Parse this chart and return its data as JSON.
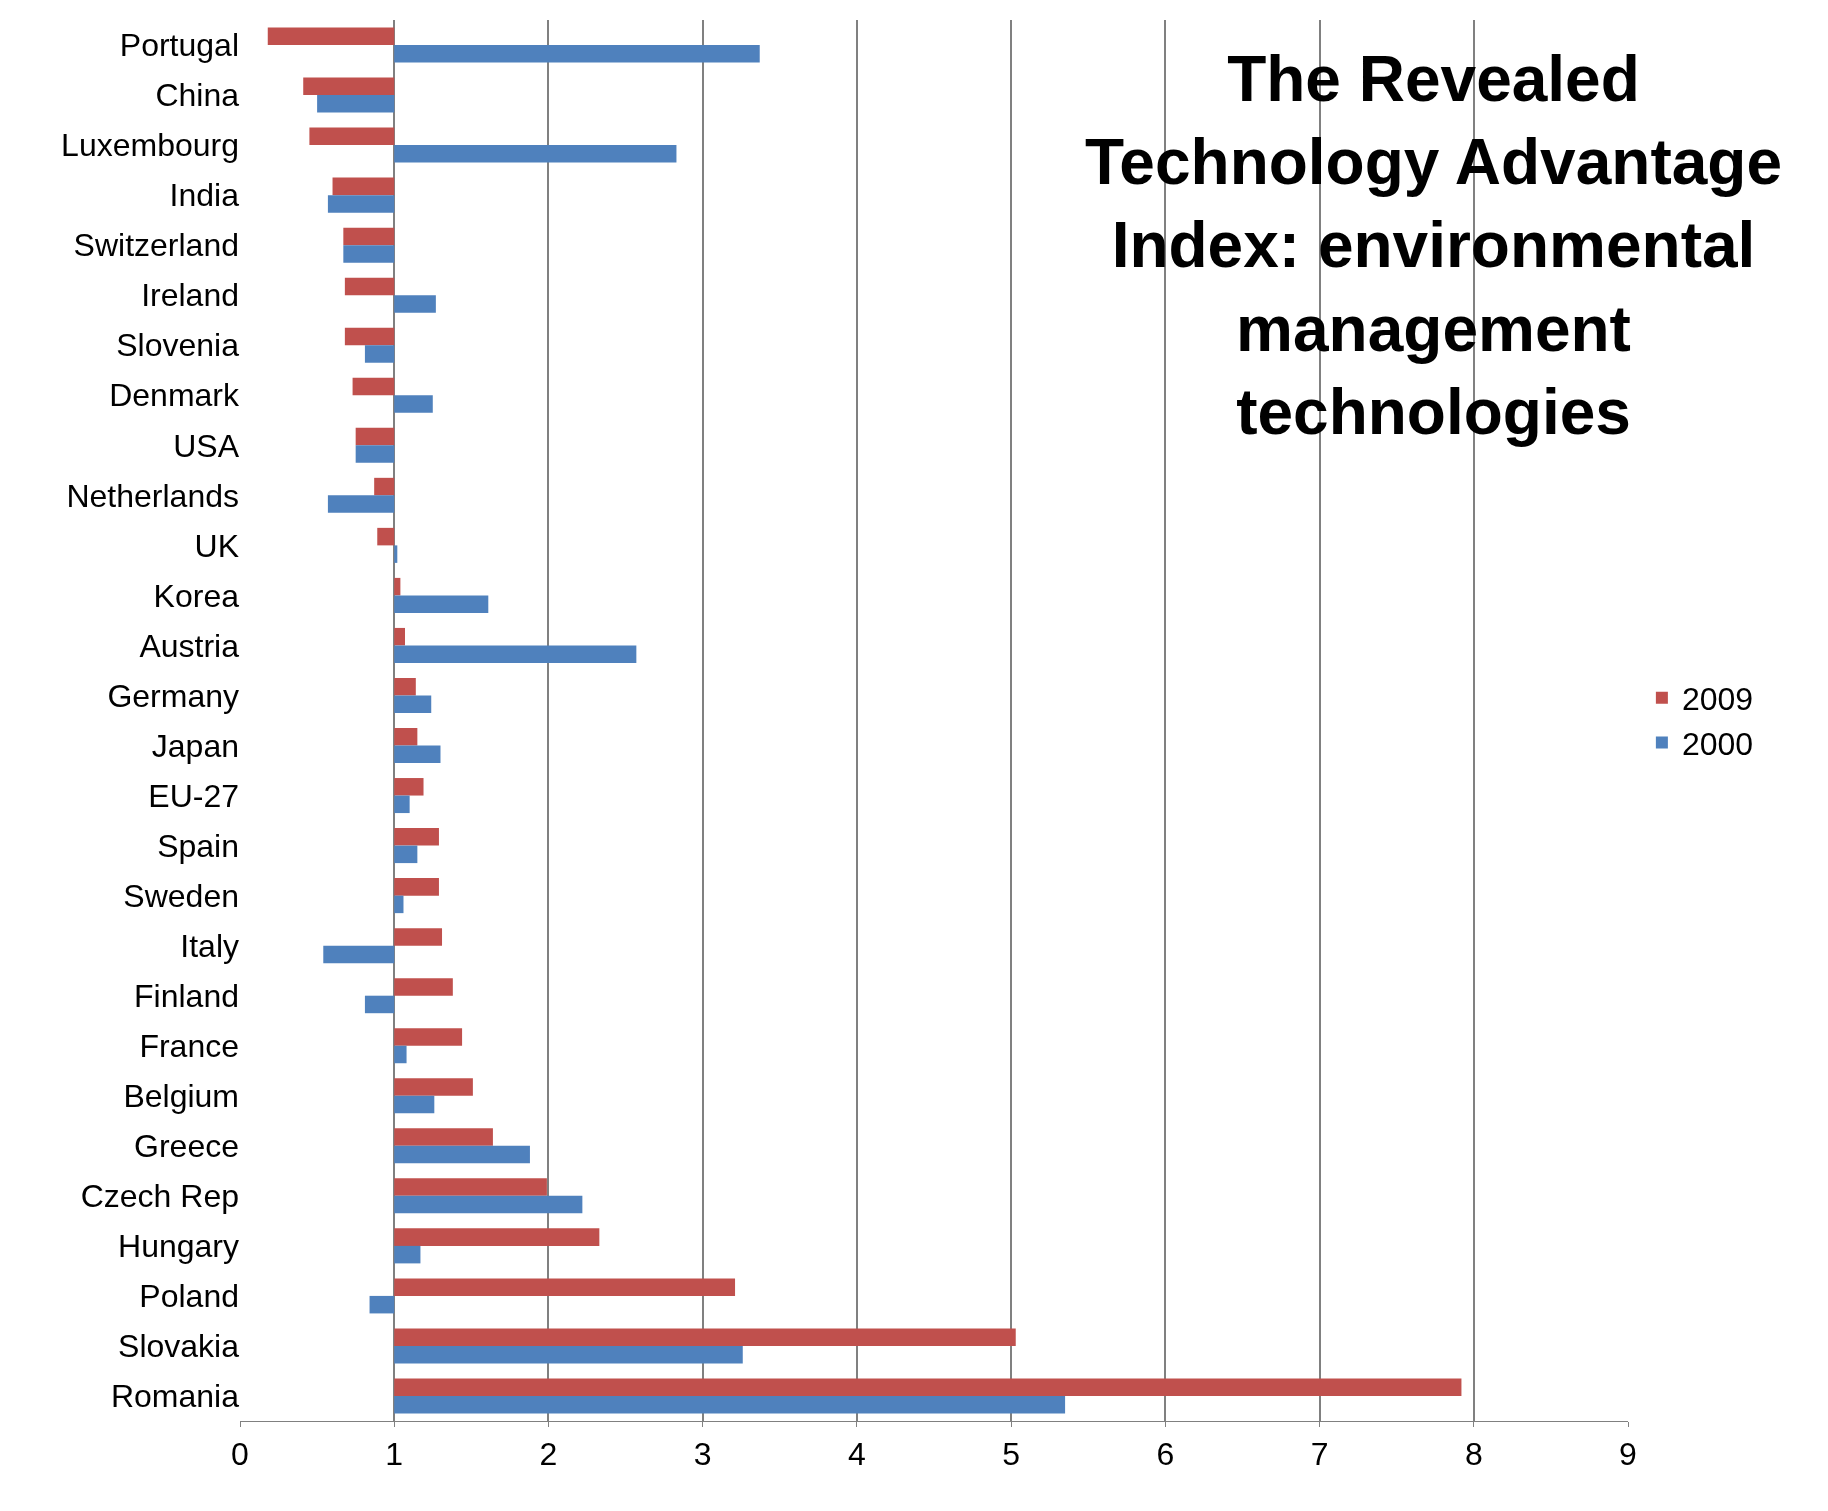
{
  "chart_data": {
    "type": "bar",
    "orientation": "horizontal",
    "title": "The Revealed Technology Advantage Index: environmental management technologies",
    "categories": [
      "Portugal",
      "China",
      "Luxembourg",
      "India",
      "Switzerland",
      "Ireland",
      "Slovenia",
      "Denmark",
      "USA",
      "Netherlands",
      "UK",
      "Korea",
      "Austria",
      "Germany",
      "Japan",
      "EU-27",
      "Spain",
      "Sweden",
      "Italy",
      "Finland",
      "France",
      "Belgium",
      "Greece",
      "Czech Rep",
      "Hungary",
      "Poland",
      "Slovakia",
      "Romania"
    ],
    "series": [
      {
        "name": "2009",
        "color": "#c0504d",
        "base": [
          1,
          1,
          1,
          1,
          1,
          1,
          1,
          1,
          1,
          1,
          1,
          1,
          1,
          1,
          1,
          1,
          1,
          1,
          1,
          1,
          1,
          1,
          1,
          1,
          1,
          1,
          1,
          1
        ],
        "values": [
          -0.82,
          -0.59,
          -0.55,
          -0.4,
          -0.33,
          -0.32,
          -0.32,
          -0.27,
          -0.25,
          -0.13,
          -0.11,
          0.04,
          0.07,
          0.14,
          0.15,
          0.19,
          0.29,
          0.29,
          0.31,
          0.38,
          0.44,
          0.51,
          0.64,
          0.99,
          1.33,
          2.21,
          4.03,
          6.92
        ]
      },
      {
        "name": "2000",
        "color": "#4f81bd",
        "base": [
          1,
          1,
          1,
          1,
          1,
          1,
          1,
          1,
          1,
          1,
          1,
          1,
          1,
          1,
          1,
          1,
          1,
          1,
          1,
          1,
          1,
          1,
          1,
          1,
          1,
          1,
          1,
          1
        ],
        "values": [
          2.37,
          -0.5,
          1.83,
          -0.43,
          -0.33,
          0.27,
          -0.19,
          0.25,
          -0.25,
          -0.43,
          0.02,
          0.61,
          1.57,
          0.24,
          0.3,
          0.1,
          0.15,
          0.06,
          -0.46,
          -0.19,
          0.08,
          0.26,
          0.88,
          1.22,
          0.17,
          -0.16,
          2.26,
          4.35
        ]
      }
    ],
    "xlim": [
      0,
      9
    ],
    "xticks": [
      0,
      1,
      2,
      3,
      4,
      5,
      6,
      7,
      8,
      9
    ],
    "grid": "x",
    "legend": "right"
  }
}
